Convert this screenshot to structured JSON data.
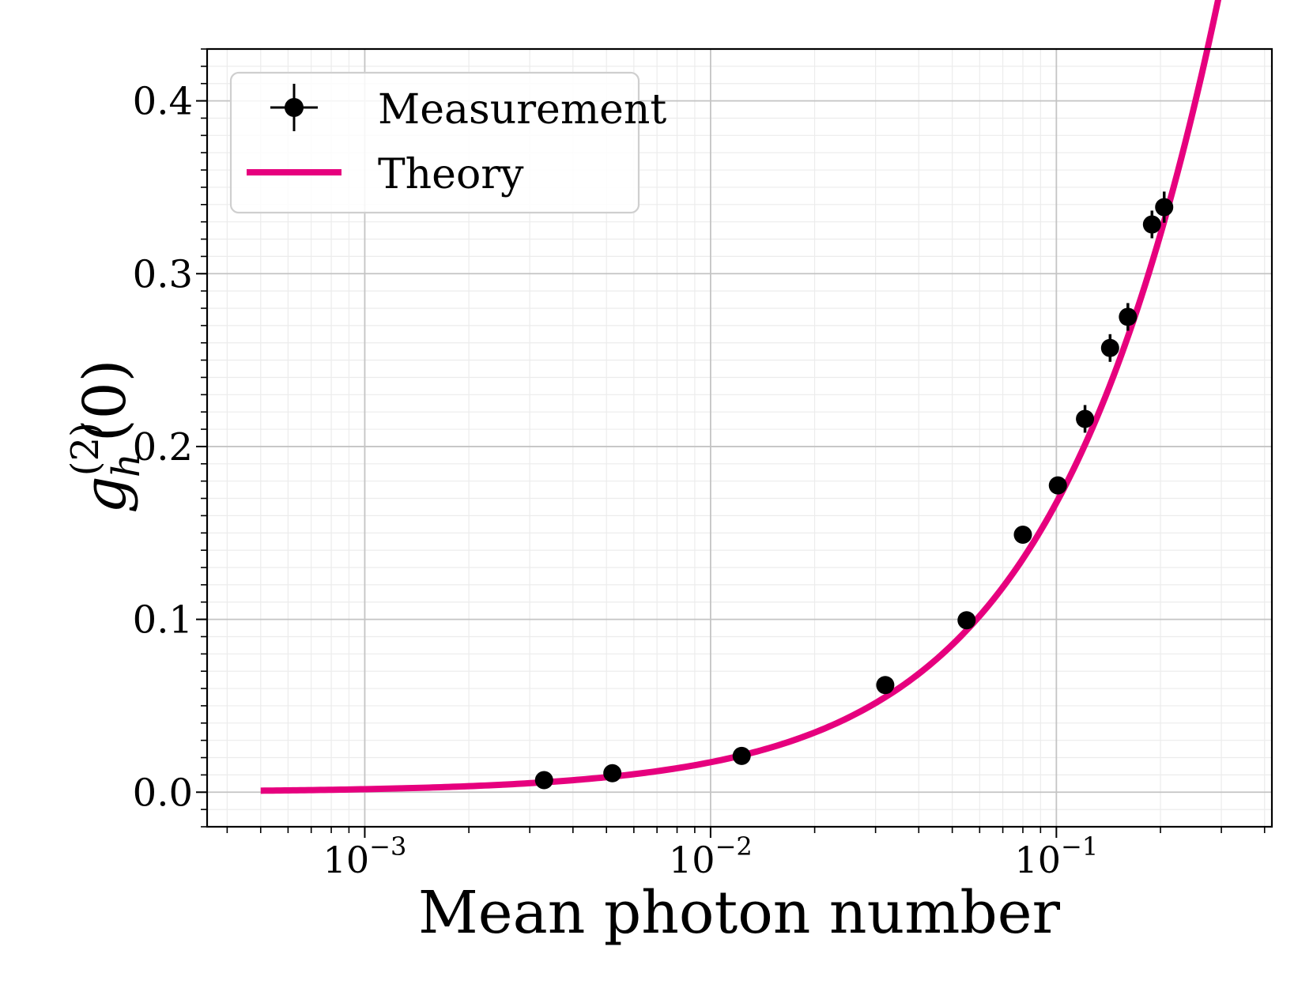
{
  "chart_data": {
    "type": "scatter",
    "title": "",
    "xlabel": "Mean photon number",
    "ylabel": {
      "base": "g",
      "subscript": "h",
      "superscript": "(2)",
      "argument": "(0)"
    },
    "xscale": "log",
    "xlim": [
      0.00035,
      0.42
    ],
    "ylim": [
      -0.02,
      0.43
    ],
    "x_ticks": [
      {
        "value": 0.001,
        "base": "10",
        "exp": "−3"
      },
      {
        "value": 0.01,
        "base": "10",
        "exp": "−2"
      },
      {
        "value": 0.1,
        "base": "10",
        "exp": "−1"
      }
    ],
    "y_ticks": [
      {
        "value": 0.0,
        "label": "0.0"
      },
      {
        "value": 0.1,
        "label": "0.1"
      },
      {
        "value": 0.2,
        "label": "0.2"
      },
      {
        "value": 0.3,
        "label": "0.3"
      },
      {
        "value": 0.4,
        "label": "0.4"
      }
    ],
    "grid": true,
    "minor_grid": true,
    "legend_position": "top-left",
    "series": [
      {
        "name": "Measurement",
        "kind": "errorbar",
        "color": "#000000",
        "points": [
          {
            "x": 0.0033,
            "y": 0.007,
            "yerr": 0.002
          },
          {
            "x": 0.0052,
            "y": 0.011,
            "yerr": 0.002
          },
          {
            "x": 0.0123,
            "y": 0.021,
            "yerr": 0.003
          },
          {
            "x": 0.032,
            "y": 0.062,
            "yerr": 0.003
          },
          {
            "x": 0.055,
            "y": 0.0995,
            "yerr": 0.004
          },
          {
            "x": 0.08,
            "y": 0.149,
            "yerr": 0.004
          },
          {
            "x": 0.101,
            "y": 0.1775,
            "yerr": 0.005
          },
          {
            "x": 0.121,
            "y": 0.216,
            "yerr": 0.008
          },
          {
            "x": 0.143,
            "y": 0.257,
            "yerr": 0.008
          },
          {
            "x": 0.161,
            "y": 0.275,
            "yerr": 0.008
          },
          {
            "x": 0.189,
            "y": 0.3285,
            "yerr": 0.008
          },
          {
            "x": 0.205,
            "y": 0.3385,
            "yerr": 0.009
          }
        ]
      },
      {
        "name": "Theory",
        "kind": "line",
        "color": "#e6007e",
        "x_range": [
          0.0005,
          0.3
        ],
        "model": "g(x) = 1.74 x / (1 + 0.39 x)"
      }
    ]
  }
}
